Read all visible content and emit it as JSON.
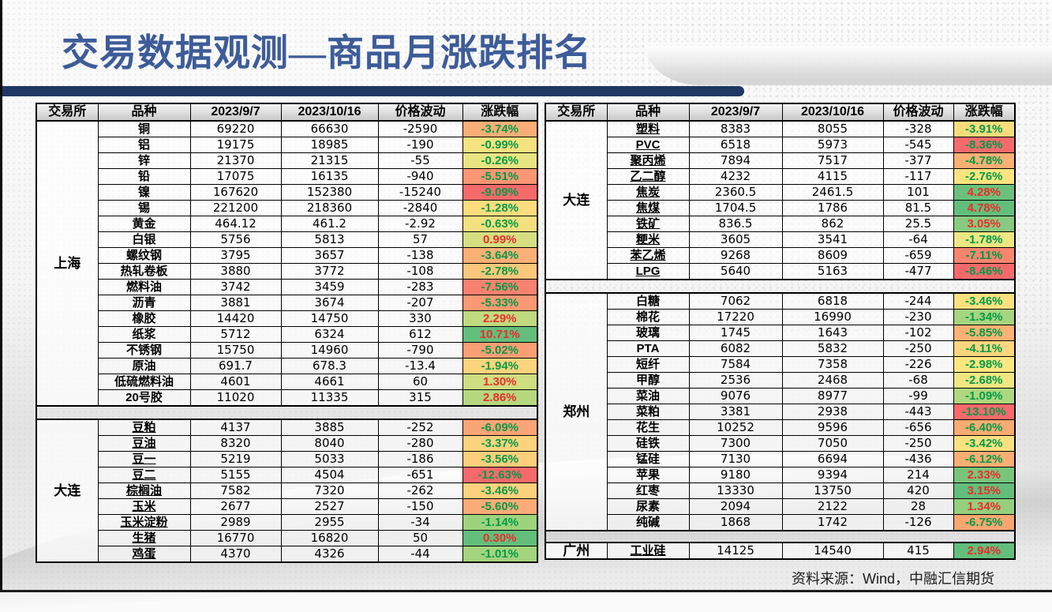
{
  "title": "交易数据观测—商品月涨跌排名",
  "source_note": "资料来源：Wind，中融汇信期货",
  "columns": [
    "交易所",
    "品种",
    "2023/9/7",
    "2023/10/16",
    "价格波动",
    "涨跌幅"
  ],
  "colors": {
    "accent_bar": "#1F3864",
    "title_text": "#3D5C99",
    "negative_pct_text": "#009B48",
    "positive_pct_text": "#EE2B2B",
    "scale_red": "#F8696B",
    "scale_yellow": "#FFEB84",
    "scale_green": "#63BE7B"
  },
  "tables": [
    {
      "id": "left",
      "sections": [
        {
          "exchange": "上海",
          "underline": false,
          "rows": [
            {
              "name": "铜",
              "d1": "69220",
              "d2": "66630",
              "chg": "-2590",
              "pct": "-3.74%",
              "bg": "#FBAE77"
            },
            {
              "name": "铝",
              "d1": "19175",
              "d2": "18985",
              "chg": "-190",
              "pct": "-0.99%",
              "bg": "#F6E27E"
            },
            {
              "name": "锌",
              "d1": "21370",
              "d2": "21315",
              "chg": "-55",
              "pct": "-0.26%",
              "bg": "#E9E482"
            },
            {
              "name": "铅",
              "d1": "17075",
              "d2": "16135",
              "chg": "-940",
              "pct": "-5.51%",
              "bg": "#FA9673"
            },
            {
              "name": "镍",
              "d1": "167620",
              "d2": "152380",
              "chg": "-15240",
              "pct": "-9.09%",
              "bg": "#F8696B"
            },
            {
              "name": "锡",
              "d1": "221200",
              "d2": "218360",
              "chg": "-2840",
              "pct": "-1.28%",
              "bg": "#FDDC7E"
            },
            {
              "name": "黄金",
              "d1": "464.12",
              "d2": "461.2",
              "chg": "-2.92",
              "pct": "-0.63%",
              "bg": "#F3E080"
            },
            {
              "name": "白银",
              "d1": "5756",
              "d2": "5813",
              "chg": "57",
              "pct": "0.99%",
              "bg": "#D5DF81"
            },
            {
              "name": "螺纹钢",
              "d1": "3795",
              "d2": "3657",
              "chg": "-138",
              "pct": "-3.64%",
              "bg": "#FBB075"
            },
            {
              "name": "热轧卷板",
              "d1": "3880",
              "d2": "3772",
              "chg": "-108",
              "pct": "-2.78%",
              "bg": "#FCC77B"
            },
            {
              "name": "燃料油",
              "d1": "3742",
              "d2": "3459",
              "chg": "-283",
              "pct": "-7.56%",
              "bg": "#F9816F"
            },
            {
              "name": "沥青",
              "d1": "3881",
              "d2": "3674",
              "chg": "-207",
              "pct": "-5.33%",
              "bg": "#FA9973"
            },
            {
              "name": "橡胶",
              "d1": "14420",
              "d2": "14750",
              "chg": "330",
              "pct": "2.29%",
              "bg": "#BFDA7F"
            },
            {
              "name": "纸浆",
              "d1": "5712",
              "d2": "6324",
              "chg": "612",
              "pct": "10.71%",
              "bg": "#63BE7B"
            },
            {
              "name": "不锈钢",
              "d1": "15750",
              "d2": "14960",
              "chg": "-790",
              "pct": "-5.02%",
              "bg": "#FA9F74"
            },
            {
              "name": "原油",
              "d1": "691.7",
              "d2": "678.3",
              "chg": "-13.4",
              "pct": "-1.94%",
              "bg": "#FDD47D"
            },
            {
              "name": "低硫燃料油",
              "d1": "4601",
              "d2": "4661",
              "chg": "60",
              "pct": "1.30%",
              "bg": "#CFDE81"
            },
            {
              "name": "20号胶",
              "d1": "11020",
              "d2": "11335",
              "chg": "315",
              "pct": "2.86%",
              "bg": "#B5D87E"
            }
          ]
        },
        {
          "exchange": "大连",
          "underline": true,
          "rows": [
            {
              "name": "豆粕",
              "d1": "4137",
              "d2": "3885",
              "chg": "-252",
              "pct": "-6.09%",
              "bg": "#FBA476"
            },
            {
              "name": "豆油",
              "d1": "8320",
              "d2": "8040",
              "chg": "-280",
              "pct": "-3.37%",
              "bg": "#FDD27D"
            },
            {
              "name": "豆一",
              "d1": "5219",
              "d2": "5033",
              "chg": "-186",
              "pct": "-3.56%",
              "bg": "#FDCF7D"
            },
            {
              "name": "豆二",
              "d1": "5155",
              "d2": "4504",
              "chg": "-651",
              "pct": "-12.63%",
              "bg": "#F8696B"
            },
            {
              "name": "棕榈油",
              "d1": "7582",
              "d2": "7320",
              "chg": "-262",
              "pct": "-3.46%",
              "bg": "#FDD17D"
            },
            {
              "name": "玉米",
              "d1": "2677",
              "d2": "2527",
              "chg": "-150",
              "pct": "-5.60%",
              "bg": "#FBAB77"
            },
            {
              "name": "玉米淀粉",
              "d1": "2989",
              "d2": "2955",
              "chg": "-34",
              "pct": "-1.14%",
              "bg": "#9ED37E"
            },
            {
              "name": "生猪",
              "d1": "16770",
              "d2": "16820",
              "chg": "50",
              "pct": "0.30%",
              "bg": "#63BE7B"
            },
            {
              "name": "鸡蛋",
              "d1": "4370",
              "d2": "4326",
              "chg": "-44",
              "pct": "-1.01%",
              "bg": "#A4D47E"
            }
          ]
        }
      ]
    },
    {
      "id": "right",
      "sections": [
        {
          "exchange": "大连",
          "underline": true,
          "rows": [
            {
              "name": "塑料",
              "d1": "8383",
              "d2": "8055",
              "chg": "-328",
              "pct": "-3.91%",
              "bg": "#FBDC7D"
            },
            {
              "name": "PVC",
              "d1": "6518",
              "d2": "5973",
              "chg": "-545",
              "pct": "-8.36%",
              "bg": "#F86A6B"
            },
            {
              "name": "聚丙烯",
              "d1": "7894",
              "d2": "7517",
              "chg": "-377",
              "pct": "-4.78%",
              "bg": "#FBAF74"
            },
            {
              "name": "乙二醇",
              "d1": "4232",
              "d2": "4115",
              "chg": "-117",
              "pct": "-2.76%",
              "bg": "#FDE47F"
            },
            {
              "name": "焦炭",
              "d1": "2360.5",
              "d2": "2461.5",
              "chg": "101",
              "pct": "4.28%",
              "bg": "#6BC17C"
            },
            {
              "name": "焦煤",
              "d1": "1704.5",
              "d2": "1786",
              "chg": "81.5",
              "pct": "4.78%",
              "bg": "#63BE7B"
            },
            {
              "name": "铁矿",
              "d1": "836.5",
              "d2": "862",
              "chg": "25.5",
              "pct": "3.05%",
              "bg": "#88CB80"
            },
            {
              "name": "粳米",
              "d1": "3605",
              "d2": "3541",
              "chg": "-64",
              "pct": "-1.78%",
              "bg": "#EDE682"
            },
            {
              "name": "苯乙烯",
              "d1": "9268",
              "d2": "8609",
              "chg": "-659",
              "pct": "-7.11%",
              "bg": "#F9856F"
            },
            {
              "name": "LPG",
              "d1": "5640",
              "d2": "5163",
              "chg": "-477",
              "pct": "-8.46%",
              "bg": "#F8696B"
            }
          ]
        },
        {
          "exchange": "郑州",
          "underline": false,
          "rows": [
            {
              "name": "白糖",
              "d1": "7062",
              "d2": "6818",
              "chg": "-244",
              "pct": "-3.46%",
              "bg": "#FDE07F"
            },
            {
              "name": "棉花",
              "d1": "17220",
              "d2": "16990",
              "chg": "-230",
              "pct": "-1.34%",
              "bg": "#A6D57F"
            },
            {
              "name": "玻璃",
              "d1": "1745",
              "d2": "1643",
              "chg": "-102",
              "pct": "-5.85%",
              "bg": "#FBB273"
            },
            {
              "name": "PTA",
              "d1": "6082",
              "d2": "5832",
              "chg": "-250",
              "pct": "-4.11%",
              "bg": "#FDD57D"
            },
            {
              "name": "短纤",
              "d1": "7584",
              "d2": "7358",
              "chg": "-226",
              "pct": "-2.98%",
              "bg": "#FCE680"
            },
            {
              "name": "甲醇",
              "d1": "2536",
              "d2": "2468",
              "chg": "-68",
              "pct": "-2.68%",
              "bg": "#F2E683"
            },
            {
              "name": "菜油",
              "d1": "9076",
              "d2": "8977",
              "chg": "-99",
              "pct": "-1.09%",
              "bg": "#AED77F"
            },
            {
              "name": "菜粕",
              "d1": "3381",
              "d2": "2938",
              "chg": "-443",
              "pct": "-13.10%",
              "bg": "#F8696B"
            },
            {
              "name": "花生",
              "d1": "10252",
              "d2": "9596",
              "chg": "-656",
              "pct": "-6.40%",
              "bg": "#FAAB72"
            },
            {
              "name": "硅铁",
              "d1": "7300",
              "d2": "7050",
              "chg": "-250",
              "pct": "-3.42%",
              "bg": "#FDE07F"
            },
            {
              "name": "锰硅",
              "d1": "7130",
              "d2": "6694",
              "chg": "-436",
              "pct": "-6.12%",
              "bg": "#FBAE73"
            },
            {
              "name": "苹果",
              "d1": "9180",
              "d2": "9394",
              "chg": "214",
              "pct": "2.33%",
              "bg": "#78C57C"
            },
            {
              "name": "红枣",
              "d1": "13330",
              "d2": "13750",
              "chg": "420",
              "pct": "3.15%",
              "bg": "#63BE7B"
            },
            {
              "name": "尿素",
              "d1": "2094",
              "d2": "2122",
              "chg": "28",
              "pct": "1.34%",
              "bg": "#93CF7D"
            },
            {
              "name": "纯碱",
              "d1": "1868",
              "d2": "1742",
              "chg": "-126",
              "pct": "-6.75%",
              "bg": "#FAA671"
            }
          ]
        },
        {
          "exchange": "广州",
          "underline": true,
          "rows": [
            {
              "name": "工业硅",
              "d1": "14125",
              "d2": "14540",
              "chg": "415",
              "pct": "2.94%",
              "bg": "#63BE7B"
            }
          ]
        }
      ]
    }
  ]
}
